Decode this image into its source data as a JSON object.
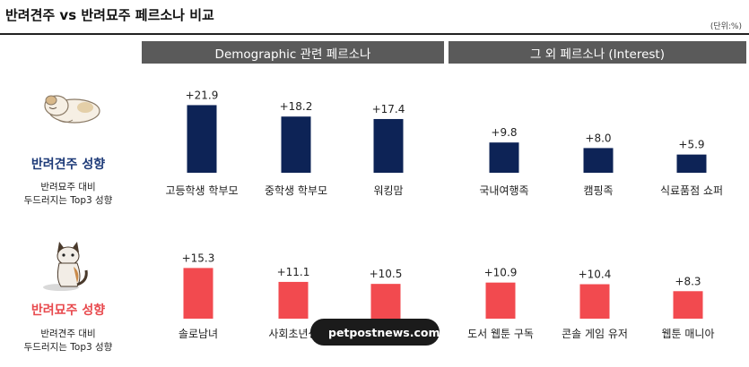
{
  "page": {
    "title": "반려견주 vs 반려묘주 페르소나 비교",
    "unit_note": "(단위:%)"
  },
  "headers": {
    "demographic": "Demographic 관련 페르소나",
    "interest": "그 외 페르소나 (Interest)"
  },
  "personas": {
    "dog": {
      "title": "반려견주 성향",
      "sub_line1": "반려묘주 대비",
      "sub_line2": "두드러지는 Top3 성향"
    },
    "cat": {
      "title": "반려묘주 성향",
      "sub_line1": "반려견주 대비",
      "sub_line2": "두드러지는 Top3 성향"
    }
  },
  "watermark": {
    "text": "petpostnews.com"
  },
  "colors": {
    "dog": "#0d2356",
    "cat": "#f24a4f",
    "header": "#5a5a5a"
  },
  "icons": {
    "dog": "sleeping-dog-icon",
    "cat": "sitting-cat-icon",
    "watermark": "globe-icon"
  },
  "chart_data": [
    {
      "type": "bar",
      "series": [
        {
          "name": "반려견주 성향",
          "values": [
            21.9,
            18.2,
            17.4
          ]
        }
      ],
      "categories": [
        "고등학생 학부모",
        "중학생 학부모",
        "워킹맘"
      ],
      "value_labels": [
        "+21.9",
        "+18.2",
        "+17.4"
      ],
      "group": "Demographic 관련 페르소나"
    },
    {
      "type": "bar",
      "series": [
        {
          "name": "반려견주 성향",
          "values": [
            9.8,
            8.0,
            5.9
          ]
        }
      ],
      "categories": [
        "국내여행족",
        "캠핑족",
        "식료품점 쇼퍼"
      ],
      "value_labels": [
        "+9.8",
        "+8.0",
        "+5.9"
      ],
      "group": "그 외 페르소나 (Interest)"
    },
    {
      "type": "bar",
      "series": [
        {
          "name": "반려묘주 성향",
          "values": [
            15.3,
            11.1,
            10.5
          ]
        }
      ],
      "categories": [
        "솔로남녀",
        "사회초년생",
        ""
      ],
      "value_labels": [
        "+15.3",
        "+11.1",
        "+10.5"
      ],
      "group": "Demographic 관련 페르소나"
    },
    {
      "type": "bar",
      "series": [
        {
          "name": "반려묘주 성향",
          "values": [
            10.9,
            10.4,
            8.3
          ]
        }
      ],
      "categories": [
        "도서 웹툰 구독",
        "콘솔 게임 유저",
        "웹툰 매니아"
      ],
      "value_labels": [
        "+10.9",
        "+10.4",
        "+8.3"
      ],
      "group": "그 외 페르소나 (Interest)"
    }
  ]
}
